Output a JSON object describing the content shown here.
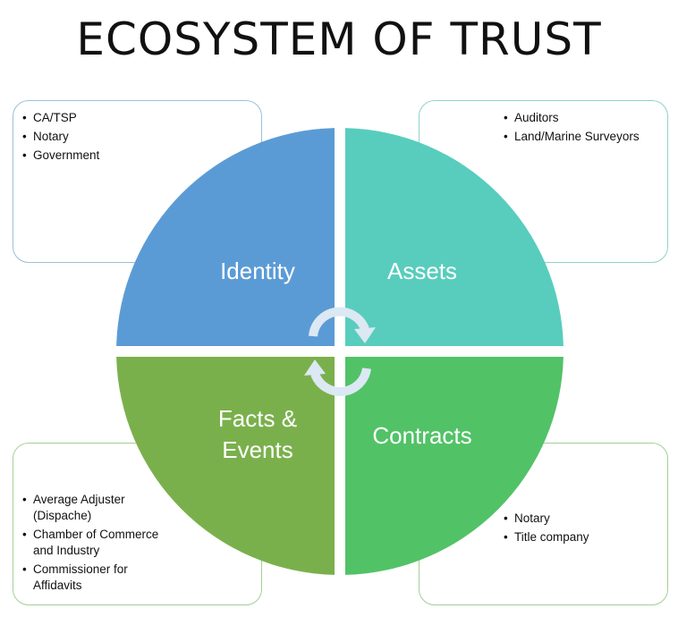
{
  "title": "ECOSYSTEM OF TRUST",
  "colors": {
    "identity": "#5b9bd5",
    "assets": "#58cdbd",
    "facts": "#7ab04c",
    "contracts": "#52c267",
    "arrows": "#dce8f3"
  },
  "quadrants": {
    "identity": "Identity",
    "assets": "Assets",
    "facts_line1": "Facts &",
    "facts_line2": "Events",
    "contracts": "Contracts"
  },
  "boxes": {
    "identity": [
      "CA/TSP",
      "Notary",
      "Government"
    ],
    "assets": [
      "Auditors",
      "Land/Marine Surveyors"
    ],
    "facts": [
      "Average Adjuster (Dispache)",
      "Chamber of Commerce and Industry",
      " Commissioner for Affidavits"
    ],
    "contracts": [
      "Notary",
      "Title company"
    ]
  }
}
